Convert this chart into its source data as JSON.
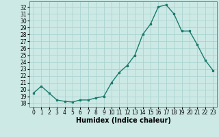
{
  "x": [
    0,
    1,
    2,
    3,
    4,
    5,
    6,
    7,
    8,
    9,
    10,
    11,
    12,
    13,
    14,
    15,
    16,
    17,
    18,
    19,
    20,
    21,
    22,
    23
  ],
  "y": [
    19.5,
    20.5,
    19.5,
    18.5,
    18.3,
    18.2,
    18.5,
    18.5,
    18.8,
    19.0,
    21.0,
    22.5,
    23.5,
    25.0,
    28.0,
    29.5,
    32.0,
    32.3,
    31.0,
    28.5,
    28.5,
    26.5,
    24.3,
    22.8
  ],
  "line_color": "#1a7a6e",
  "bg_color": "#cce9e5",
  "grid_color": "#aad4d0",
  "xlabel": "Humidex (Indice chaleur)",
  "xlim": [
    -0.5,
    23.5
  ],
  "ylim": [
    17.5,
    32.8
  ],
  "yticks": [
    18,
    19,
    20,
    21,
    22,
    23,
    24,
    25,
    26,
    27,
    28,
    29,
    30,
    31,
    32
  ],
  "xticks": [
    0,
    1,
    2,
    3,
    4,
    5,
    6,
    7,
    8,
    9,
    10,
    11,
    12,
    13,
    14,
    15,
    16,
    17,
    18,
    19,
    20,
    21,
    22,
    23
  ],
  "tick_fontsize": 5.5,
  "label_fontsize": 7.0
}
